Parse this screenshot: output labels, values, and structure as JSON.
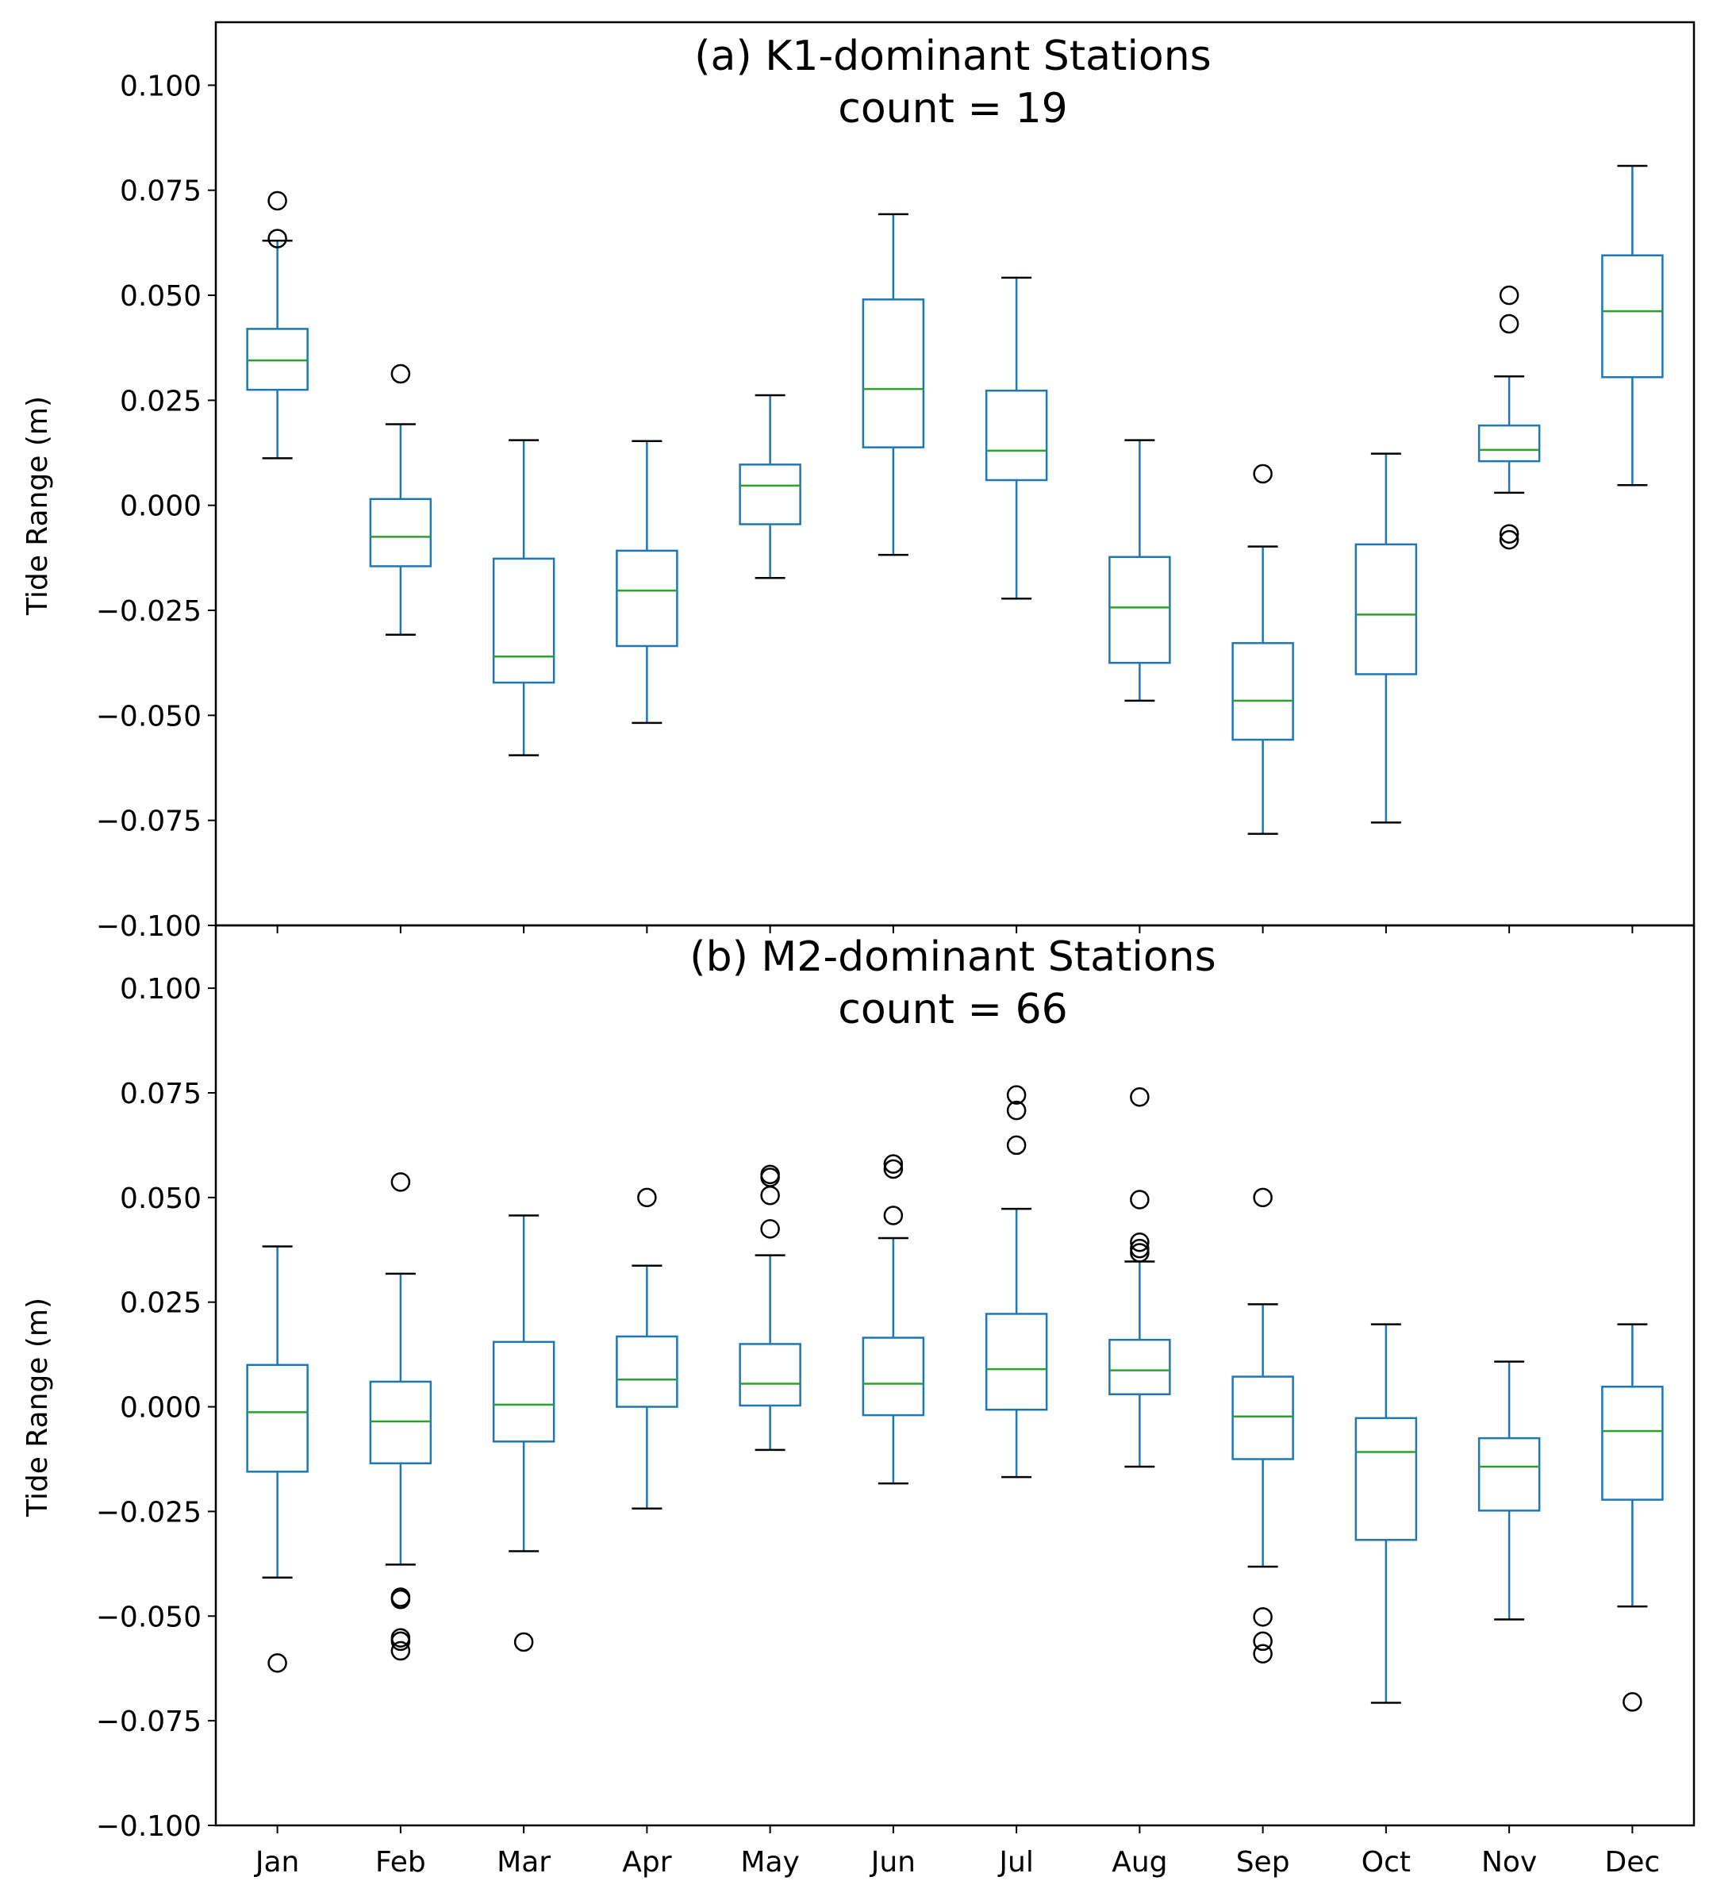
{
  "chart_data": [
    {
      "type": "box",
      "title": "(a) K1-dominant Stations",
      "subtitle": "count = 19",
      "xlabel": "",
      "ylabel": "Tide Range (m)",
      "ylim": [
        -0.1,
        0.115
      ],
      "yticks": [
        "−0.100",
        "−0.075",
        "−0.050",
        "−0.025",
        "0.000",
        "0.025",
        "0.050",
        "0.075",
        "0.100"
      ],
      "categories": [
        "Jan",
        "Feb",
        "Mar",
        "Apr",
        "May",
        "Jun",
        "Jul",
        "Aug",
        "Sep",
        "Oct",
        "Nov",
        "Dec"
      ],
      "grid": false,
      "colors": {
        "box": "#1f77b4",
        "median": "#2ca02c",
        "whisker": "#1f77b4",
        "cap": "#000000",
        "flier": "#000000"
      },
      "boxes": [
        {
          "q1": 0.0275,
          "median": 0.0345,
          "q3": 0.042,
          "whislo": 0.0112,
          "whishi": 0.063,
          "fliers": [
            0.0725,
            0.0635
          ]
        },
        {
          "q1": -0.0145,
          "median": -0.0075,
          "q3": 0.0015,
          "whislo": -0.0308,
          "whishi": 0.0193,
          "fliers": [
            0.0313
          ]
        },
        {
          "q1": -0.0422,
          "median": -0.036,
          "q3": -0.0127,
          "whislo": -0.0595,
          "whishi": 0.0155,
          "fliers": []
        },
        {
          "q1": -0.0335,
          "median": -0.0203,
          "q3": -0.0108,
          "whislo": -0.0518,
          "whishi": 0.0153,
          "fliers": []
        },
        {
          "q1": -0.0045,
          "median": 0.0047,
          "q3": 0.0097,
          "whislo": -0.0173,
          "whishi": 0.0262,
          "fliers": []
        },
        {
          "q1": 0.0138,
          "median": 0.0277,
          "q3": 0.049,
          "whislo": -0.0118,
          "whishi": 0.0693,
          "fliers": []
        },
        {
          "q1": 0.006,
          "median": 0.013,
          "q3": 0.0273,
          "whislo": -0.0222,
          "whishi": 0.0542,
          "fliers": []
        },
        {
          "q1": -0.0375,
          "median": -0.0243,
          "q3": -0.0123,
          "whislo": -0.0465,
          "whishi": 0.0155,
          "fliers": []
        },
        {
          "q1": -0.0558,
          "median": -0.0465,
          "q3": -0.0328,
          "whislo": -0.0782,
          "whishi": -0.0098,
          "fliers": [
            0.0075
          ]
        },
        {
          "q1": -0.0402,
          "median": -0.026,
          "q3": -0.0093,
          "whislo": -0.0755,
          "whishi": 0.0123,
          "fliers": []
        },
        {
          "q1": 0.0105,
          "median": 0.0132,
          "q3": 0.019,
          "whislo": 0.003,
          "whishi": 0.0307,
          "fliers": [
            0.05,
            0.0432,
            -0.0068,
            -0.0082
          ]
        },
        {
          "q1": 0.0305,
          "median": 0.0462,
          "q3": 0.0595,
          "whislo": 0.0048,
          "whishi": 0.0808,
          "fliers": []
        }
      ]
    },
    {
      "type": "box",
      "title": "(b) M2-dominant Stations",
      "subtitle": "count = 66",
      "xlabel": "",
      "ylabel": "Tide Range (m)",
      "ylim": [
        -0.1,
        0.115
      ],
      "yticks": [
        "−0.100",
        "−0.075",
        "−0.050",
        "−0.025",
        "0.000",
        "0.025",
        "0.050",
        "0.075",
        "0.100"
      ],
      "categories": [
        "Jan",
        "Feb",
        "Mar",
        "Apr",
        "May",
        "Jun",
        "Jul",
        "Aug",
        "Sep",
        "Oct",
        "Nov",
        "Dec"
      ],
      "grid": false,
      "colors": {
        "box": "#1f77b4",
        "median": "#2ca02c",
        "whisker": "#1f77b4",
        "cap": "#000000",
        "flier": "#000000"
      },
      "boxes": [
        {
          "q1": -0.0155,
          "median": -0.0013,
          "q3": 0.01,
          "whislo": -0.0408,
          "whishi": 0.0383,
          "fliers": [
            -0.0612
          ]
        },
        {
          "q1": -0.0135,
          "median": -0.0035,
          "q3": 0.006,
          "whislo": -0.0377,
          "whishi": 0.0318,
          "fliers": [
            0.0537,
            -0.0455,
            -0.046,
            -0.0552,
            -0.056,
            -0.0583
          ]
        },
        {
          "q1": -0.0083,
          "median": 0.0005,
          "q3": 0.0155,
          "whislo": -0.0345,
          "whishi": 0.0457,
          "fliers": [
            -0.0562
          ]
        },
        {
          "q1": 0.0,
          "median": 0.0065,
          "q3": 0.0168,
          "whislo": -0.0243,
          "whishi": 0.0337,
          "fliers": [
            0.05
          ]
        },
        {
          "q1": 0.0003,
          "median": 0.0055,
          "q3": 0.015,
          "whislo": -0.0103,
          "whishi": 0.0362,
          "fliers": [
            0.0555,
            0.0548,
            0.0505,
            0.0425
          ]
        },
        {
          "q1": -0.002,
          "median": 0.0055,
          "q3": 0.0165,
          "whislo": -0.0183,
          "whishi": 0.0403,
          "fliers": [
            0.058,
            0.0568,
            0.0457
          ]
        },
        {
          "q1": -0.0007,
          "median": 0.009,
          "q3": 0.0222,
          "whislo": -0.0168,
          "whishi": 0.0473,
          "fliers": [
            0.0745,
            0.0708,
            0.0625
          ]
        },
        {
          "q1": 0.003,
          "median": 0.0087,
          "q3": 0.016,
          "whislo": -0.0143,
          "whishi": 0.0347,
          "fliers": [
            0.074,
            0.0495,
            0.0393,
            0.0378,
            0.0368
          ]
        },
        {
          "q1": -0.0125,
          "median": -0.0023,
          "q3": 0.0072,
          "whislo": -0.0382,
          "whishi": 0.0245,
          "fliers": [
            0.05,
            -0.0502,
            -0.056,
            -0.059
          ]
        },
        {
          "q1": -0.0318,
          "median": -0.0108,
          "q3": -0.0027,
          "whislo": -0.0707,
          "whishi": 0.0197,
          "fliers": []
        },
        {
          "q1": -0.0248,
          "median": -0.0143,
          "q3": -0.0075,
          "whislo": -0.0508,
          "whishi": 0.0108,
          "fliers": []
        },
        {
          "q1": -0.0222,
          "median": -0.0058,
          "q3": 0.0048,
          "whislo": -0.0477,
          "whishi": 0.0197,
          "fliers": [
            -0.0705
          ]
        }
      ]
    }
  ]
}
